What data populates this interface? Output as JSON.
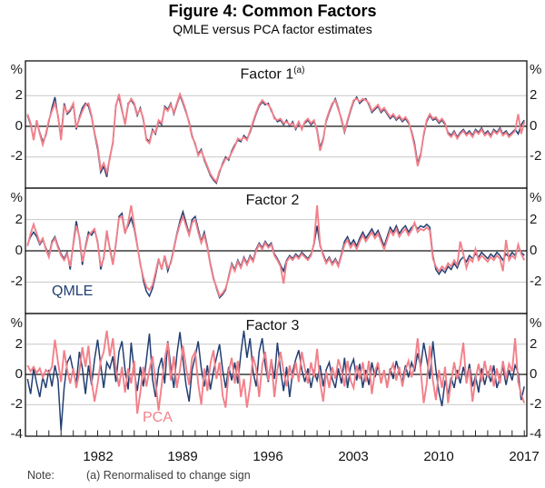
{
  "figure": {
    "title": "Figure 4: Common Factors",
    "subtitle": "QMLE versus PCA factor estimates"
  },
  "axis_ticks": {
    "percent": "%",
    "two": "2",
    "zero": "0",
    "minus_two": "-2",
    "minus_four": "-4"
  },
  "x_axis": {
    "year_labels": [
      "1982",
      "1989",
      "1996",
      "2003",
      "2010",
      "2017"
    ]
  },
  "note": {
    "label": "Note:",
    "text": "(a) Renormalised to change sign"
  },
  "chart_data": [
    {
      "type": "line",
      "title": "Factor 1",
      "title_superscript": "(a)",
      "unit": "%",
      "ylim": [
        -4.2,
        4.3
      ],
      "y_gridlines": [
        2,
        -2
      ],
      "x_start": 1976.25,
      "x_step": 0.25,
      "x_end": 2017.0,
      "x_tick_years": [
        1982,
        1989,
        1996,
        2003,
        2010,
        2017
      ],
      "legend_position": "none",
      "series": [
        {
          "name": "QMLE",
          "color": "#223f72",
          "values": [
            0.7,
            0.1,
            -0.8,
            0.3,
            -0.4,
            -1.0,
            -0.6,
            0.3,
            1.2,
            1.9,
            0.6,
            -0.7,
            1.5,
            0.8,
            1.0,
            1.4,
            -0.2,
            0.6,
            1.2,
            1.5,
            1.3,
            0.6,
            -0.5,
            -1.5,
            -3.0,
            -2.6,
            -3.3,
            -2.0,
            -1.1,
            1.4,
            1.9,
            1.0,
            0.2,
            1.5,
            1.7,
            1.4,
            0.7,
            1.2,
            0.4,
            -0.8,
            -1.0,
            -0.2,
            -0.5,
            0.3,
            0.1,
            1.3,
            1.1,
            1.5,
            0.8,
            1.4,
            2.0,
            1.5,
            0.9,
            0.3,
            -0.6,
            -1.2,
            -1.8,
            -1.5,
            -2.2,
            -2.7,
            -3.2,
            -3.5,
            -3.7,
            -3.0,
            -2.4,
            -2.0,
            -2.2,
            -1.6,
            -1.2,
            -0.9,
            -1.0,
            -0.6,
            -0.8,
            -0.4,
            0.2,
            0.8,
            1.3,
            1.6,
            1.4,
            1.5,
            1.0,
            0.6,
            0.3,
            0.4,
            0.1,
            0.4,
            0.0,
            0.3,
            -0.2,
            0.2,
            -0.1,
            0.2,
            0.4,
            0.1,
            0.3,
            -0.2,
            -1.4,
            -0.8,
            0.3,
            0.9,
            1.4,
            1.8,
            1.2,
            0.4,
            -0.4,
            0.3,
            1.0,
            1.6,
            1.9,
            1.5,
            1.7,
            1.8,
            1.4,
            0.9,
            1.1,
            1.3,
            0.9,
            1.1,
            0.8,
            0.5,
            0.7,
            0.4,
            0.6,
            0.3,
            0.5,
            0.2,
            -0.3,
            -1.1,
            -2.4,
            -1.8,
            -0.6,
            0.3,
            0.7,
            0.4,
            0.5,
            0.2,
            0.4,
            0.1,
            -0.4,
            -0.6,
            -0.3,
            -0.7,
            -0.4,
            -0.2,
            -0.5,
            -0.3,
            -0.6,
            -0.2,
            -0.4,
            -0.1,
            -0.5,
            -0.3,
            -0.6,
            -0.2,
            -0.4,
            -0.1,
            -0.5,
            -0.3,
            -0.6,
            -0.4,
            -0.2,
            -0.5,
            0.1,
            0.4
          ]
        },
        {
          "name": "PCA",
          "color": "#f2808a",
          "values": [
            0.8,
            0.2,
            -0.9,
            0.4,
            -0.5,
            -1.2,
            -0.5,
            0.4,
            1.0,
            1.5,
            0.7,
            -0.9,
            1.3,
            0.9,
            1.1,
            1.5,
            -0.1,
            0.5,
            1.0,
            1.4,
            1.5,
            0.7,
            -0.4,
            -1.3,
            -2.8,
            -2.4,
            -3.0,
            -2.1,
            -1.0,
            1.3,
            2.1,
            1.1,
            0.1,
            1.4,
            1.8,
            1.5,
            0.8,
            1.1,
            0.5,
            -0.9,
            -1.1,
            -0.3,
            -0.4,
            0.4,
            0.2,
            1.2,
            1.0,
            1.4,
            0.9,
            1.5,
            2.1,
            1.6,
            1.0,
            0.2,
            -0.7,
            -1.1,
            -1.9,
            -1.6,
            -2.1,
            -2.6,
            -3.1,
            -3.4,
            -3.6,
            -2.9,
            -2.5,
            -2.1,
            -2.1,
            -1.7,
            -1.3,
            -0.8,
            -0.9,
            -0.7,
            -0.9,
            -0.3,
            0.3,
            0.9,
            1.4,
            1.7,
            1.5,
            1.4,
            1.1,
            0.5,
            0.4,
            0.5,
            0.2,
            0.3,
            0.1,
            0.2,
            -0.1,
            0.3,
            -0.2,
            0.3,
            0.5,
            0.2,
            0.4,
            -0.3,
            -1.6,
            -0.9,
            0.4,
            1.0,
            1.5,
            1.7,
            1.1,
            0.5,
            -0.3,
            0.4,
            1.1,
            1.7,
            1.8,
            1.6,
            1.8,
            1.7,
            1.5,
            1.0,
            1.2,
            1.4,
            1.0,
            1.2,
            0.9,
            0.6,
            0.8,
            0.5,
            0.7,
            0.4,
            0.6,
            0.3,
            -0.4,
            -1.3,
            -2.6,
            -1.9,
            -0.5,
            0.4,
            0.8,
            0.5,
            0.6,
            0.3,
            0.5,
            0.2,
            -0.5,
            -0.7,
            -0.4,
            -0.8,
            -0.5,
            -0.3,
            -0.6,
            -0.4,
            -0.7,
            -0.3,
            -0.5,
            -0.2,
            -0.6,
            -0.4,
            -0.7,
            -0.3,
            -0.5,
            -0.2,
            -0.6,
            -0.4,
            -0.7,
            -0.5,
            -0.3,
            0.8,
            -0.5,
            0.3
          ]
        }
      ]
    },
    {
      "type": "line",
      "title": "Factor 2",
      "unit": "%",
      "ylim": [
        -4.0,
        4.0
      ],
      "y_gridlines": [
        2,
        -2
      ],
      "x_start": 1976.25,
      "x_step": 0.25,
      "x_end": 2017.0,
      "x_tick_years": [
        1982,
        1989,
        1996,
        2003,
        2010,
        2017
      ],
      "legend_position": "inside-bottom-left",
      "series": [
        {
          "name": "QMLE",
          "color": "#223f72",
          "values": [
            0.4,
            0.9,
            1.2,
            0.9,
            0.4,
            0.7,
            0.2,
            -0.3,
            0.6,
            0.9,
            0.3,
            -0.2,
            -0.5,
            -0.1,
            -1.2,
            0.5,
            1.9,
            0.8,
            -0.9,
            0.3,
            1.2,
            1.0,
            1.3,
            0.6,
            -1.2,
            -0.4,
            1.1,
            0.2,
            -0.8,
            0.4,
            2.2,
            2.4,
            1.2,
            1.6,
            2.1,
            1.4,
            0.3,
            -0.8,
            -1.9,
            -2.6,
            -2.9,
            -2.4,
            -1.6,
            -0.6,
            -1.1,
            -0.4,
            -1.3,
            -0.7,
            0.2,
            1.1,
            1.9,
            2.5,
            1.8,
            1.1,
            2.0,
            2.2,
            1.4,
            0.6,
            1.2,
            0.3,
            -0.8,
            -1.7,
            -2.4,
            -3.0,
            -2.8,
            -2.5,
            -1.6,
            -0.8,
            -1.2,
            -0.6,
            -1.0,
            -0.4,
            -0.8,
            -0.3,
            -0.6,
            0.1,
            0.5,
            0.2,
            0.6,
            0.3,
            0.5,
            -0.2,
            -0.5,
            -0.9,
            -1.3,
            -0.6,
            -0.3,
            -0.5,
            -0.2,
            -0.4,
            -0.1,
            -0.3,
            -0.5,
            -0.2,
            0.4,
            1.6,
            0.3,
            -0.2,
            -0.7,
            -0.4,
            -0.8,
            -0.5,
            -0.9,
            -0.2,
            0.6,
            0.9,
            0.4,
            0.7,
            0.3,
            0.8,
            1.2,
            0.8,
            1.1,
            1.4,
            1.0,
            1.3,
            0.8,
            0.3,
            0.9,
            1.5,
            1.2,
            1.6,
            1.1,
            1.4,
            1.6,
            1.2,
            1.5,
            1.7,
            1.4,
            1.6,
            1.5,
            1.7,
            1.5,
            -0.3,
            -1.2,
            -1.5,
            -1.2,
            -1.4,
            -1.0,
            -1.2,
            -0.8,
            -1.1,
            -0.6,
            -0.4,
            -0.7,
            -0.3,
            -0.5,
            -0.2,
            -0.4,
            -0.1,
            -0.3,
            -0.5,
            -0.2,
            -0.4,
            -0.1,
            -0.3,
            -0.6,
            -0.2,
            -0.4,
            -0.1,
            -0.3,
            0.3,
            -0.1,
            -0.3
          ]
        },
        {
          "name": "PCA",
          "color": "#f2808a",
          "values": [
            0.3,
            1.1,
            1.7,
            1.1,
            0.5,
            0.8,
            0.1,
            -0.4,
            0.5,
            0.8,
            0.2,
            -0.3,
            -0.6,
            -0.2,
            -1.0,
            0.4,
            1.6,
            0.9,
            -0.7,
            0.2,
            1.0,
            1.2,
            1.4,
            0.5,
            -1.0,
            -0.5,
            1.3,
            0.1,
            -0.9,
            0.5,
            2.1,
            2.2,
            1.1,
            1.8,
            2.9,
            1.6,
            0.4,
            -0.9,
            -1.7,
            -2.3,
            -2.5,
            -2.2,
            -1.4,
            -0.5,
            -1.2,
            -0.3,
            -1.1,
            -0.8,
            0.1,
            1.0,
            1.7,
            2.2,
            1.6,
            1.0,
            1.8,
            2.0,
            1.2,
            0.5,
            1.0,
            0.2,
            -0.9,
            -1.8,
            -2.3,
            -2.9,
            -2.7,
            -2.4,
            -1.7,
            -0.9,
            -1.3,
            -0.7,
            -1.1,
            -0.5,
            -0.9,
            -0.4,
            -0.7,
            0.0,
            0.4,
            0.1,
            0.5,
            0.2,
            0.4,
            -0.3,
            -0.6,
            -1.0,
            -2.1,
            -0.7,
            -0.4,
            -0.6,
            -0.3,
            -0.5,
            -0.2,
            -0.4,
            -0.6,
            -0.3,
            0.5,
            2.9,
            0.4,
            -0.3,
            -0.8,
            -0.5,
            -0.9,
            -0.6,
            -1.0,
            -0.3,
            0.4,
            0.7,
            0.2,
            0.5,
            0.1,
            0.6,
            1.0,
            0.6,
            0.9,
            1.2,
            0.8,
            1.1,
            0.6,
            0.1,
            0.7,
            1.3,
            1.0,
            1.4,
            0.9,
            1.2,
            1.4,
            1.0,
            1.3,
            1.8,
            1.2,
            1.4,
            1.3,
            1.5,
            1.3,
            -0.5,
            -1.0,
            -1.3,
            -1.0,
            -1.2,
            -0.8,
            -1.0,
            -0.6,
            -0.9,
            0.6,
            -0.2,
            -1.1,
            -0.5,
            -0.7,
            0.1,
            -0.6,
            -0.3,
            -0.5,
            -0.7,
            -0.4,
            -0.6,
            -0.3,
            -0.5,
            -1.3,
            0.7,
            -0.6,
            -0.3,
            -0.5,
            0.4,
            -0.2,
            -0.6
          ]
        }
      ]
    },
    {
      "type": "line",
      "title": "Factor 3",
      "unit": "%",
      "ylim": [
        -4.0,
        4.0
      ],
      "y_gridlines": [
        2,
        -2
      ],
      "x_start": 1976.25,
      "x_step": 0.25,
      "x_end": 2017.0,
      "x_tick_years": [
        1982,
        1989,
        1996,
        2003,
        2010,
        2017
      ],
      "legend_position": "inside-bottom-left",
      "series": [
        {
          "name": "QMLE",
          "color": "#223f72",
          "values": [
            -0.3,
            -1.3,
            0.4,
            -0.6,
            -1.5,
            -0.2,
            -0.9,
            0.3,
            -0.8,
            0.6,
            -0.4,
            -3.7,
            -0.9,
            0.8,
            1.2,
            0.2,
            -0.6,
            1.5,
            0.4,
            -1.3,
            0.6,
            -0.7,
            1.0,
            2.3,
            0.6,
            -0.9,
            0.8,
            0.4,
            1.2,
            -0.5,
            1.5,
            2.2,
            0.3,
            -1.0,
            2.1,
            0.2,
            -1.1,
            0.5,
            -0.8,
            1.0,
            2.7,
            -0.3,
            -1.5,
            0.4,
            1.1,
            -0.6,
            2.2,
            0.5,
            -0.9,
            1.3,
            2.8,
            1.0,
            -0.7,
            -1.8,
            0.3,
            1.2,
            2.2,
            0.4,
            -0.8,
            0.6,
            -1.0,
            0.2,
            1.1,
            2.0,
            0.3,
            -0.9,
            0.5,
            -0.4,
            0.8,
            -0.6,
            1.4,
            2.9,
            1.1,
            2.4,
            0.2,
            -0.8,
            1.5,
            2.4,
            0.6,
            -0.5,
            1.0,
            -0.3,
            2.1,
            0.3,
            -1.1,
            0.5,
            -1.5,
            0.2,
            1.0,
            1.6,
            0.3,
            -0.5,
            0.4,
            -0.9,
            0.2,
            -0.4,
            0.6,
            -0.8,
            0.3,
            0.8,
            -0.3,
            -0.9,
            0.4,
            -0.6,
            1.1,
            -0.9,
            0.5,
            1.0,
            -0.4,
            0.7,
            -0.9,
            0.3,
            -0.7,
            0.8,
            -0.2,
            0.6,
            -0.5,
            0.2,
            -0.8,
            0.4,
            -0.3,
            0.9,
            0.1,
            -0.5,
            0.6,
            -0.2,
            0.8,
            0.2,
            1.4,
            0.5,
            2.1,
            1.0,
            -0.3,
            2.2,
            0.3,
            -1.2,
            -2.1,
            -0.4,
            -1.3,
            -0.2,
            -0.9,
            0.3,
            -0.6,
            0.5,
            -0.4,
            0.7,
            -0.8,
            -0.1,
            -1.2,
            0.4,
            -0.7,
            0.2,
            -0.5,
            0.6,
            -0.9,
            -0.2,
            0.5,
            -0.7,
            0.3,
            -0.4,
            0.6,
            0.1,
            -1.7,
            -0.8
          ]
        },
        {
          "name": "PCA",
          "color": "#f2808a",
          "values": [
            0.6,
            0.2,
            0.5,
            0.1,
            0.4,
            -0.2,
            0.3,
            0.1,
            0.5,
            2.3,
            0.8,
            -0.5,
            1.6,
            0.3,
            -0.6,
            0.4,
            -0.9,
            0.2,
            1.8,
            0.5,
            1.9,
            -0.4,
            -1.8,
            -0.6,
            0.9,
            1.5,
            2.9,
            1.2,
            2.4,
            0.3,
            -0.8,
            0.5,
            -1.2,
            0.4,
            -0.6,
            0.9,
            -2.6,
            -1.2,
            0.5,
            -0.8,
            0.3,
            1.2,
            -0.5,
            -2.4,
            -0.7,
            1.0,
            2.1,
            -0.4,
            1.2,
            -0.9,
            0.3,
            1.9,
            0.5,
            -0.7,
            1.1,
            1.5,
            -0.6,
            -2.0,
            0.4,
            -1.1,
            0.7,
            1.6,
            -0.3,
            0.8,
            -1.4,
            -2.2,
            0.2,
            1.1,
            -0.6,
            0.9,
            -1.5,
            -0.3,
            -2.2,
            -0.8,
            1.2,
            0.4,
            -1.5,
            0.6,
            1.5,
            -0.4,
            1.0,
            -1.5,
            0.3,
            1.5,
            0.2,
            -0.8,
            0.6,
            -0.3,
            0.8,
            -0.5,
            1.5,
            0.4,
            -0.6,
            0.8,
            -0.2,
            1.7,
            -0.5,
            -1.8,
            0.2,
            -0.9,
            0.5,
            -0.3,
            1.0,
            0.3,
            -0.8,
            0.9,
            -0.4,
            -0.9,
            0.6,
            -0.3,
            0.8,
            -0.5,
            0.9,
            -1.3,
            0.2,
            0.8,
            -0.6,
            0.3,
            -0.9,
            0.2,
            0.7,
            -0.4,
            0.5,
            -0.8,
            0.3,
            0.9,
            -0.2,
            0.6,
            2.4,
            0.3,
            -1.9,
            -0.6,
            1.9,
            -0.4,
            -1.7,
            0.3,
            -0.9,
            0.5,
            -1.9,
            -0.5,
            0.8,
            -0.3,
            0.6,
            2.1,
            -0.6,
            0.4,
            -1.8,
            -0.3,
            0.7,
            -0.5,
            0.9,
            -0.2,
            0.6,
            -0.8,
            0.4,
            -0.6,
            0.9,
            -0.3,
            0.7,
            0.2,
            2.4,
            -0.5,
            -1.3,
            -1.9
          ]
        }
      ]
    }
  ]
}
